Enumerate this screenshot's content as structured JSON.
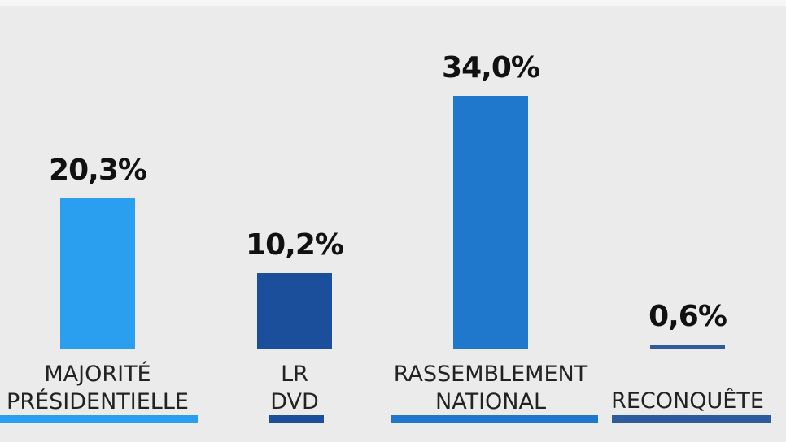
{
  "chart_data": {
    "type": "bar",
    "categories": [
      [
        "MAJORITÉ",
        "PRÉSIDENTIELLE"
      ],
      [
        "LR",
        "DVD"
      ],
      [
        "RASSEMBLEMENT",
        "NATIONAL"
      ],
      [
        "RECONQUÊTE"
      ]
    ],
    "values": [
      20.3,
      10.2,
      34.0,
      0.6
    ],
    "value_labels": [
      "20,3%",
      "10,2%",
      "34,0%",
      "0,6%"
    ],
    "colors": [
      "#2a9fef",
      "#1b4f9c",
      "#1f78cc",
      "#2e5a9e"
    ],
    "title": "",
    "xlabel": "",
    "ylabel": "",
    "grid": false,
    "legend": "none"
  }
}
